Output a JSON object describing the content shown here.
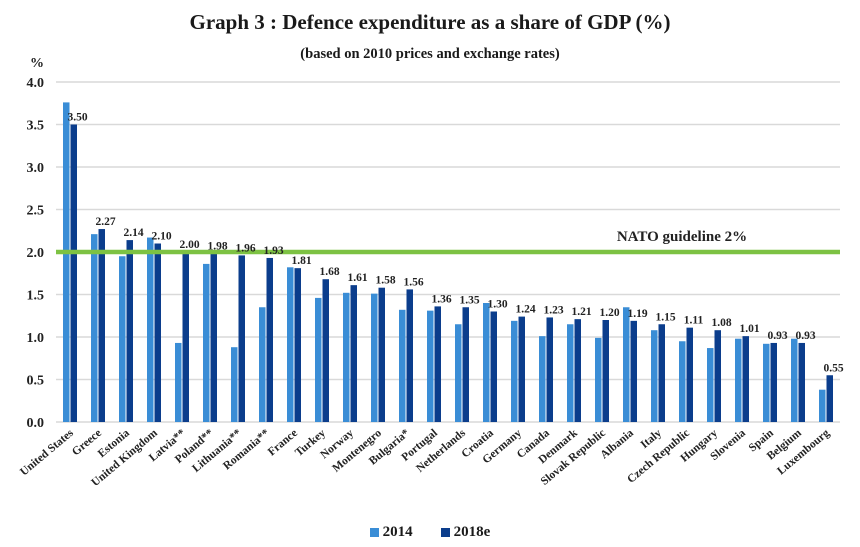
{
  "chart_data": {
    "type": "bar",
    "title": "Graph 3 : Defence expenditure as a share of GDP (%)",
    "subtitle": "(based on 2010 prices and exchange rates)",
    "ylabel": "%",
    "xlabel": "",
    "ylim": [
      0,
      4.0
    ],
    "yticks": [
      "0.0",
      "0.5",
      "1.0",
      "1.5",
      "2.0",
      "2.5",
      "3.0",
      "3.5",
      "4.0"
    ],
    "grid": true,
    "legend_position": "bottom-center",
    "categories": [
      "United States",
      "Greece",
      "Estonia",
      "United Kingdom",
      "Latvia**",
      "Poland**",
      "Lithuania**",
      "Romania**",
      "France",
      "Turkey",
      "Norway",
      "Montenegro",
      "Bulgaria*",
      "Portugal",
      "Netherlands",
      "Croatia",
      "Germany",
      "Canada",
      "Denmark",
      "Slovak Republic",
      "Albania",
      "Italy",
      "Czech Republic",
      "Hungary",
      "Slovenia",
      "Spain",
      "Belgium",
      "Luxembourg"
    ],
    "series": [
      {
        "name": "2014",
        "color": "#3a8dd6",
        "values": [
          3.76,
          2.21,
          1.95,
          2.17,
          0.93,
          1.86,
          0.88,
          1.35,
          1.82,
          1.46,
          1.52,
          1.51,
          1.32,
          1.31,
          1.15,
          1.4,
          1.19,
          1.01,
          1.15,
          0.99,
          1.35,
          1.08,
          0.95,
          0.87,
          0.98,
          0.92,
          0.98,
          0.38
        ]
      },
      {
        "name": "2018e",
        "color": "#0b3d8c",
        "values": [
          3.5,
          2.27,
          2.14,
          2.1,
          2.0,
          1.98,
          1.96,
          1.93,
          1.81,
          1.68,
          1.61,
          1.58,
          1.56,
          1.36,
          1.35,
          1.3,
          1.24,
          1.23,
          1.21,
          1.2,
          1.19,
          1.15,
          1.11,
          1.08,
          1.01,
          0.93,
          0.93,
          0.55
        ],
        "data_labels": [
          "3.50",
          "2.27",
          "2.14",
          "2.10",
          "2.00",
          "1.98",
          "1.96",
          "1.93",
          "1.81",
          "1.68",
          "1.61",
          "1.58",
          "1.56",
          "1.36",
          "1.35",
          "1.30",
          "1.24",
          "1.23",
          "1.21",
          "1.20",
          "1.19",
          "1.15",
          "1.11",
          "1.08",
          "1.01",
          "0.93",
          "0.93",
          "0.55"
        ]
      }
    ],
    "reference_line": {
      "value": 2.0,
      "label": "NATO guideline 2%",
      "color": "#7dc243"
    },
    "gridline_color": "#d9d9d9"
  }
}
